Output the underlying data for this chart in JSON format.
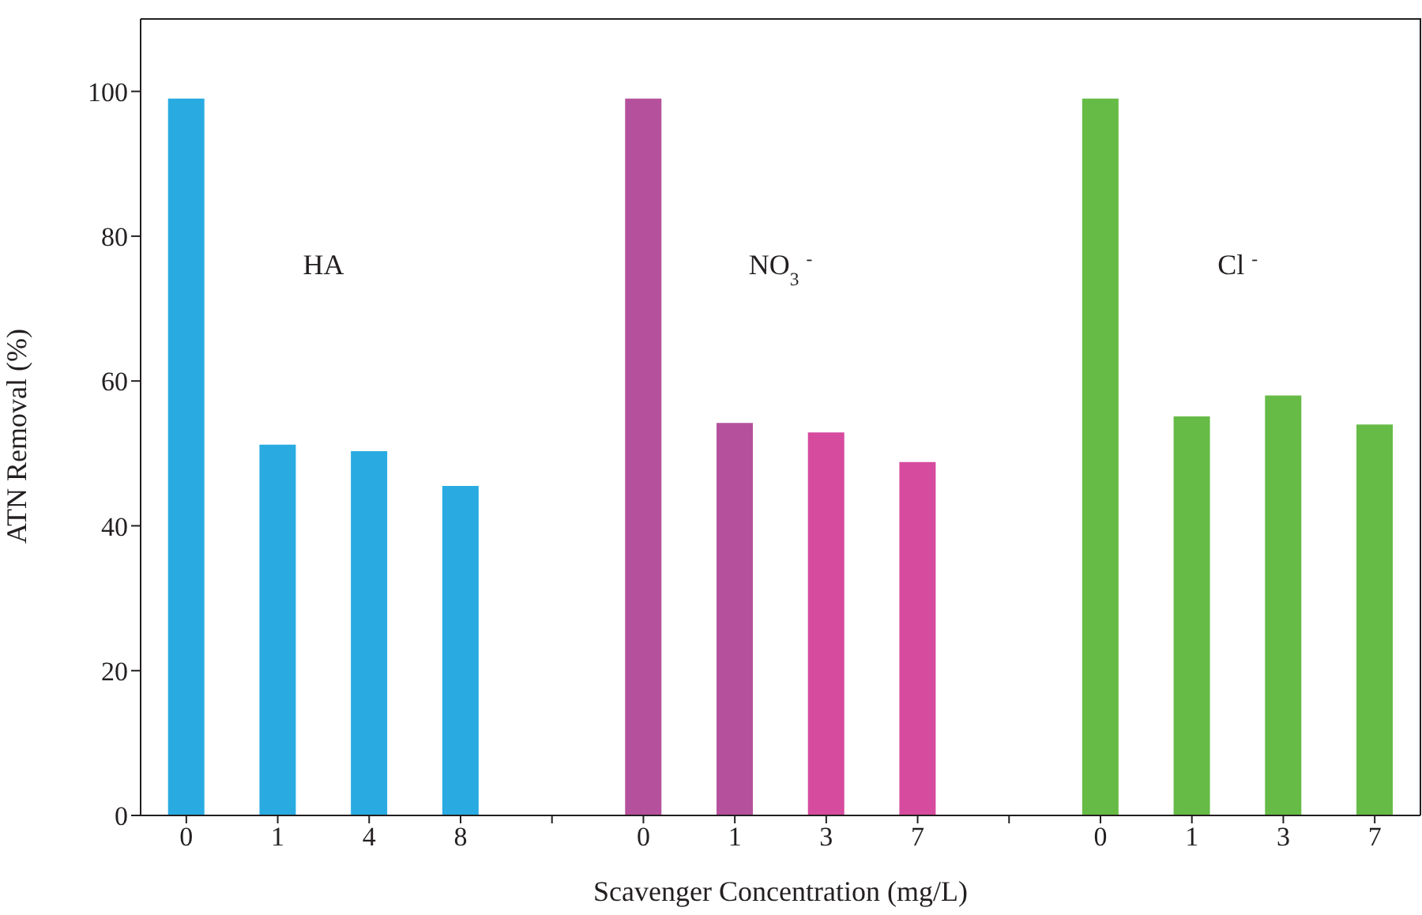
{
  "chart_data": {
    "type": "bar",
    "xlabel": "Scavenger Concentration (mg/L)",
    "ylabel": "ATN Removal (%)",
    "categories": [
      "0",
      "1",
      "4",
      "8",
      null,
      "0",
      "1",
      "3",
      "7",
      null,
      "0",
      "1",
      "3",
      "7"
    ],
    "values": [
      99,
      51.2,
      50.3,
      45.5,
      null,
      99,
      54.2,
      52.9,
      48.8,
      null,
      99,
      55.1,
      58.0,
      54.0
    ],
    "colors": [
      "#29abe2",
      "#29abe2",
      "#29abe2",
      "#29abe2",
      null,
      "#b5519c",
      "#b5519c",
      "#d64b9e",
      "#d64b9e",
      null,
      "#66bb46",
      "#66bb46",
      "#66bb46",
      "#66bb46"
    ],
    "ylim": [
      0,
      110
    ],
    "yticks": [
      0,
      20,
      40,
      60,
      80,
      100
    ],
    "annotations": [
      "HA",
      "NO$_{3}$ $^{-}$",
      "Cl $^{-}$"
    ]
  }
}
